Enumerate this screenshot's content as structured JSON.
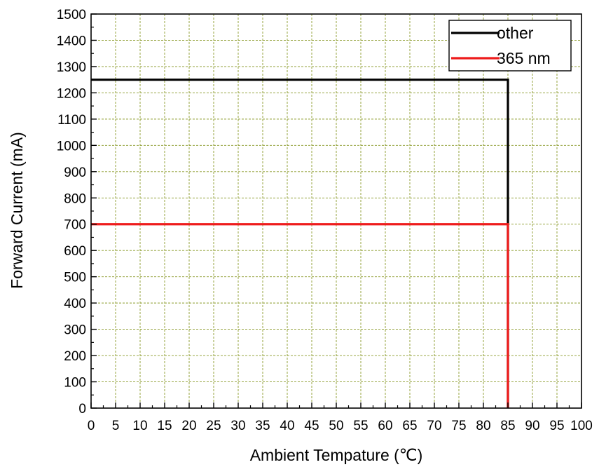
{
  "chart_data": {
    "type": "line",
    "title": "",
    "xlabel": "Ambient Tempature (℃)",
    "ylabel": "Forward Current (mA)",
    "xlim": [
      0,
      100
    ],
    "ylim": [
      0,
      1500
    ],
    "xticks": [
      0,
      5,
      10,
      15,
      20,
      25,
      30,
      35,
      40,
      45,
      50,
      55,
      60,
      65,
      70,
      75,
      80,
      85,
      90,
      95,
      100
    ],
    "yticks": [
      0,
      100,
      200,
      300,
      400,
      500,
      600,
      700,
      800,
      900,
      1000,
      1100,
      1200,
      1300,
      1400,
      1500
    ],
    "grid": true,
    "legend_position": "top-right",
    "series": [
      {
        "name": "other",
        "color": "#000000",
        "x": [
          0,
          85,
          85
        ],
        "y": [
          1250,
          1250,
          0
        ]
      },
      {
        "name": "365 nm",
        "color": "#ee1c1c",
        "x": [
          0,
          85,
          85
        ],
        "y": [
          700,
          700,
          0
        ]
      }
    ],
    "grid_color": "#8a9a2a"
  }
}
